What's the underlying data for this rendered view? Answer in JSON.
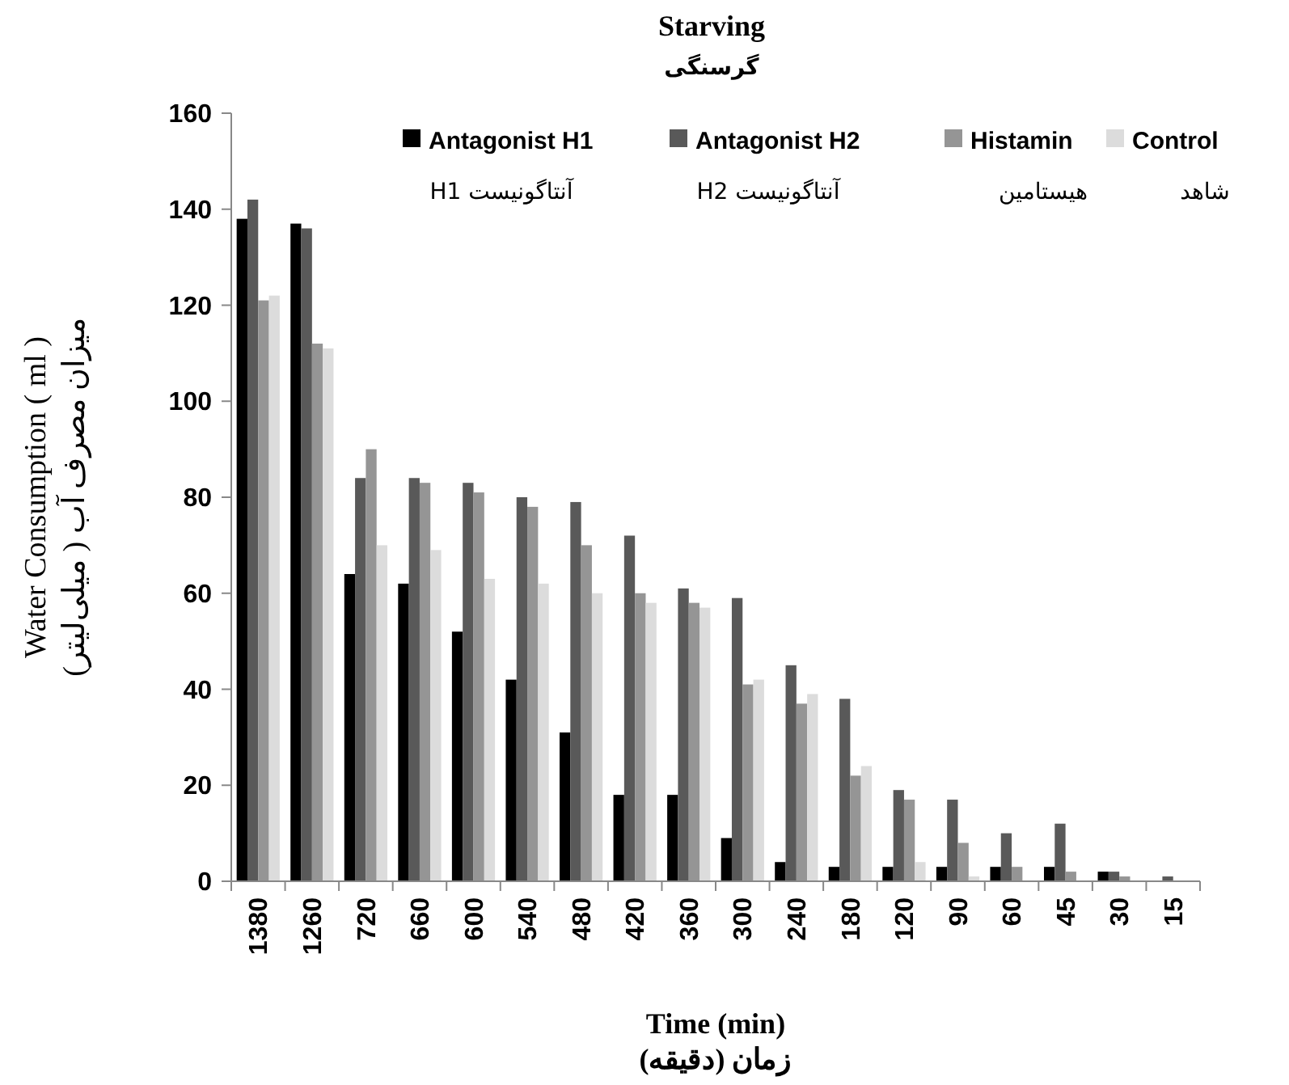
{
  "chart_data": {
    "type": "bar",
    "title": "Starving",
    "subtitle": "گرسنگی",
    "xlabel": "Time (min)\nزمان (دقیقه)",
    "ylabel": "Water Consumption ( ml )\nمیزان مصرف آب ( میلی‌لیتر)",
    "categories": [
      "1380",
      "1260",
      "720",
      "660",
      "600",
      "540",
      "480",
      "420",
      "360",
      "300",
      "240",
      "180",
      "120",
      "90",
      "60",
      "45",
      "30",
      "15"
    ],
    "series": [
      {
        "name": "Antagonist H1\nH1 آنتاگونیست",
        "color": "#000000",
        "values": [
          138,
          137,
          64,
          62,
          52,
          42,
          31,
          18,
          18,
          9,
          4,
          3,
          3,
          3,
          3,
          3,
          2,
          0
        ]
      },
      {
        "name": "Antagonist H2\nH2 آنتاگونیست",
        "color": "#595959",
        "values": [
          142,
          136,
          84,
          84,
          83,
          80,
          79,
          72,
          61,
          59,
          45,
          38,
          19,
          17,
          10,
          12,
          2,
          1
        ]
      },
      {
        "name": "Histamin\nهیستامین",
        "color": "#959595",
        "values": [
          121,
          112,
          90,
          83,
          81,
          78,
          70,
          60,
          58,
          41,
          37,
          22,
          17,
          8,
          3,
          2,
          1,
          0
        ]
      },
      {
        "name": "Control\nشاهد",
        "color": "#dcdcdc",
        "values": [
          122,
          111,
          70,
          69,
          63,
          62,
          60,
          58,
          57,
          42,
          39,
          24,
          4,
          1,
          0,
          0,
          0,
          0
        ]
      }
    ],
    "ylim": [
      0,
      160
    ],
    "yticks": [
      0,
      20,
      40,
      60,
      80,
      100,
      120,
      140,
      160
    ],
    "grid": false,
    "legend": "top"
  }
}
